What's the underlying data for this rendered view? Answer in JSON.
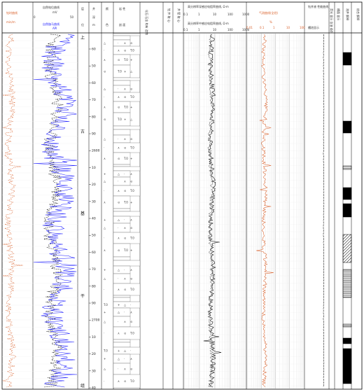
{
  "header": {
    "col_drill_time": "钻时曲线",
    "col_drill_time_unit": "min/m",
    "col_sp": "自然电位曲线",
    "col_sp_unit": "mV",
    "col_gamma": "自然伽马曲线",
    "col_gamma_unit": "API",
    "col_stratum_1": "层",
    "col_stratum_2": "位",
    "col_depth_1": "井",
    "col_depth_2": "深",
    "col_depth_3": "m",
    "col_color_1": "颜",
    "col_color_2": "色",
    "col_lith_1": "岩  性",
    "col_lith_2": "剖  面",
    "col_fossil": "化石 石含 构有 造物",
    "col_core1": "钻 井 取 心",
    "col_core2": "井 壁 取 心",
    "col_res_deep": "高分辨率深感应电阻率曲线, Ω·m",
    "col_res_mid": "高分辨率中感应电阻率曲线, Ω·m",
    "col_gas": "气测曲线(全烃)",
    "col_gas_unit": "%",
    "col_drill_perf": "钻井液 性能曲线",
    "col_leak": "槽池显示",
    "col_oil_show": "荧光 显示 含油 级别",
    "col_well_show": "槽面 显示",
    "col_log_interp": "测井 解释",
    "col_comp_interp": "综合 解释",
    "scale_res": [
      "0.1",
      "1",
      "10",
      "100",
      "1000"
    ],
    "scale_gas": [
      "0.01",
      "0.1",
      "1",
      "10",
      "100"
    ],
    "scale_sp": [
      "0",
      "50"
    ],
    "scale_gamma": [
      "0",
      "150"
    ]
  },
  "stratum": {
    "name_top": "上",
    "name_1": "古",
    "name_2": "基",
    "name_3": "干",
    "name_bot": "组"
  },
  "depth_marks": [
    "60",
    "50",
    "60",
    "70",
    "80",
    "90",
    "2600",
    "10",
    "20",
    "30",
    "40",
    "50",
    "60",
    "70",
    "80",
    "90",
    "2700",
    "10",
    "20",
    "30",
    "40"
  ],
  "lith_symbols": [
    "T.0",
    "+",
    "△",
    "·",
    "∧",
    "⊙"
  ]
}
